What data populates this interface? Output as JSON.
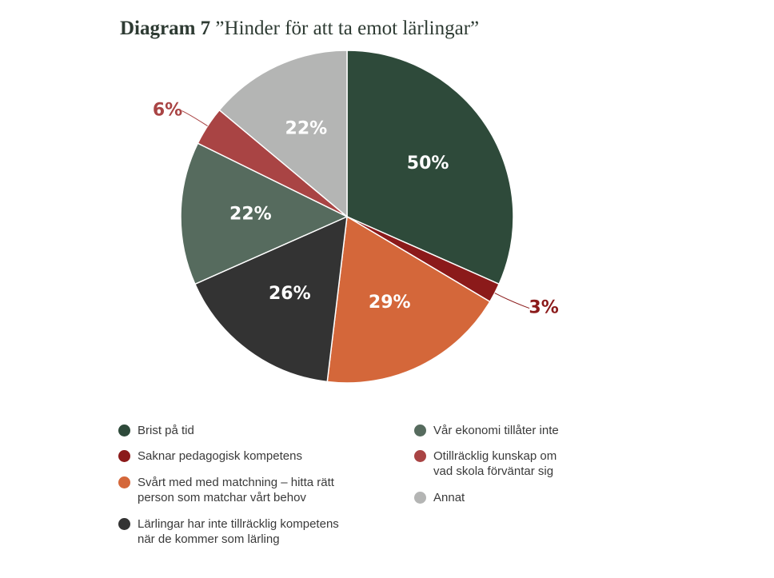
{
  "title": {
    "prefix": "Diagram 7",
    "text": "”Hinder för att ta emot lärlingar”"
  },
  "chart_data": {
    "type": "pie",
    "title": "Diagram 7 ”Hinder för att ta emot lärlingar”",
    "slices": [
      {
        "label": "Brist på tid",
        "display": "50%",
        "value": 50,
        "color": "#2e4a3a"
      },
      {
        "label": "Saknar pedagogisk kompetens",
        "display": "3%",
        "value": 3,
        "color": "#8b1a1a"
      },
      {
        "label": "Svårt med med matchning – hitta rätt\nperson som matchar vårt behov",
        "display": "29%",
        "value": 29,
        "color": "#d4673a"
      },
      {
        "label": "Lärlingar har inte tillräcklig kompetens\nnär de kommer som lärling",
        "display": "26%",
        "value": 26,
        "color": "#333333"
      },
      {
        "label": "Vår ekonomi tillåter inte",
        "display": "22%",
        "value": 22,
        "color": "#566b5e"
      },
      {
        "label": "Otillräcklig kunskap om\nvad skola förväntar sig",
        "display": "6%",
        "value": 6,
        "color": "#a94444"
      },
      {
        "label": "Annat",
        "display": "22%",
        "value": 22,
        "color": "#b4b5b4"
      }
    ],
    "legend_placement": "bottom"
  }
}
